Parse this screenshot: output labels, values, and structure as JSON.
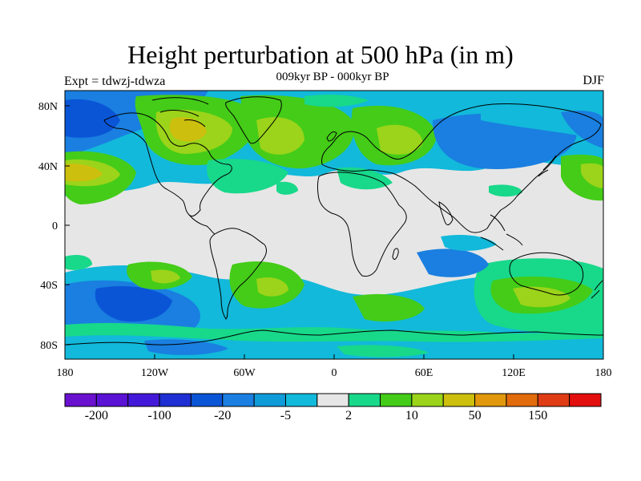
{
  "title": "Height perturbation at 500 hPa (in m)",
  "subtitle": "009kyr BP - 000kyr BP",
  "experiment": "Expt = tdwzj-tdwza",
  "season": "DJF",
  "map": {
    "y_ticks": [
      "80N",
      "40N",
      "0",
      "40S",
      "80S"
    ],
    "x_ticks": [
      "180",
      "120W",
      "60W",
      "0",
      "60E",
      "120E",
      "180"
    ]
  },
  "colorbar": {
    "labels": [
      "-200",
      "-100",
      "-20",
      "-5",
      "2",
      "10",
      "50",
      "150"
    ],
    "colors": [
      "#6a11cf",
      "#5a12d5",
      "#4418d8",
      "#1e2fd3",
      "#0a55d6",
      "#1a7fe0",
      "#0f9ad8",
      "#12b9da",
      "#e6e6e6",
      "#18d88a",
      "#44cc18",
      "#9bd41a",
      "#cdbf0e",
      "#e1980c",
      "#e26b0c",
      "#df3c15",
      "#e30f0f"
    ]
  },
  "palette": {
    "ocean_neutral": "#e6e6e6",
    "pos_light": "#18d88a",
    "pos_mid": "#44cc18",
    "pos_high": "#9bd41a",
    "pos_max": "#cdbf0e",
    "neg_light": "#12b9da",
    "neg_mid": "#0f9ad8",
    "neg_high": "#1a7fe0",
    "neg_max": "#0a55d6"
  }
}
